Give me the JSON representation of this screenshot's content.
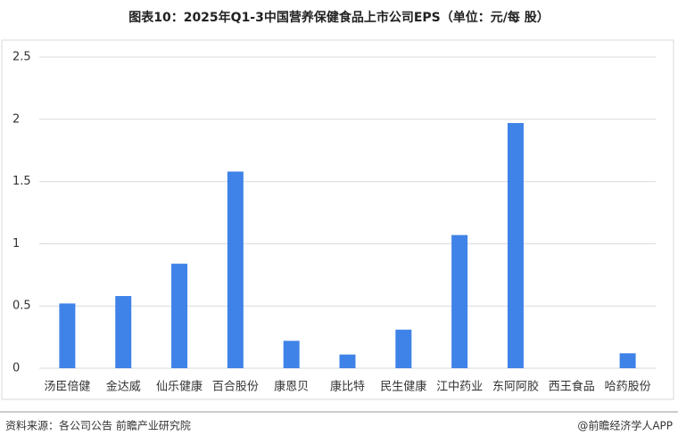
{
  "chart_data": {
    "type": "bar",
    "title": "图表10：2025年Q1-3中国营养保健食品上市公司EPS（单位：元/每 股）",
    "categories": [
      "汤臣倍健",
      "金达威",
      "仙乐健康",
      "百合股份",
      "康恩贝",
      "康比特",
      "民生健康",
      "江中药业",
      "东阿阿胶",
      "西王食品",
      "哈药股份"
    ],
    "values": [
      0.52,
      0.58,
      0.84,
      1.58,
      0.22,
      0.11,
      0.31,
      1.07,
      1.97,
      0,
      0.12
    ],
    "color": "#3f83e8",
    "ylim": [
      0,
      2.5
    ],
    "yticks": [
      0,
      0.5,
      1,
      1.5,
      2,
      2.5
    ],
    "grid": true,
    "source": "资料来源：各公司公告 前瞻产业研究院",
    "credit": "@前瞻经济学人APP"
  }
}
